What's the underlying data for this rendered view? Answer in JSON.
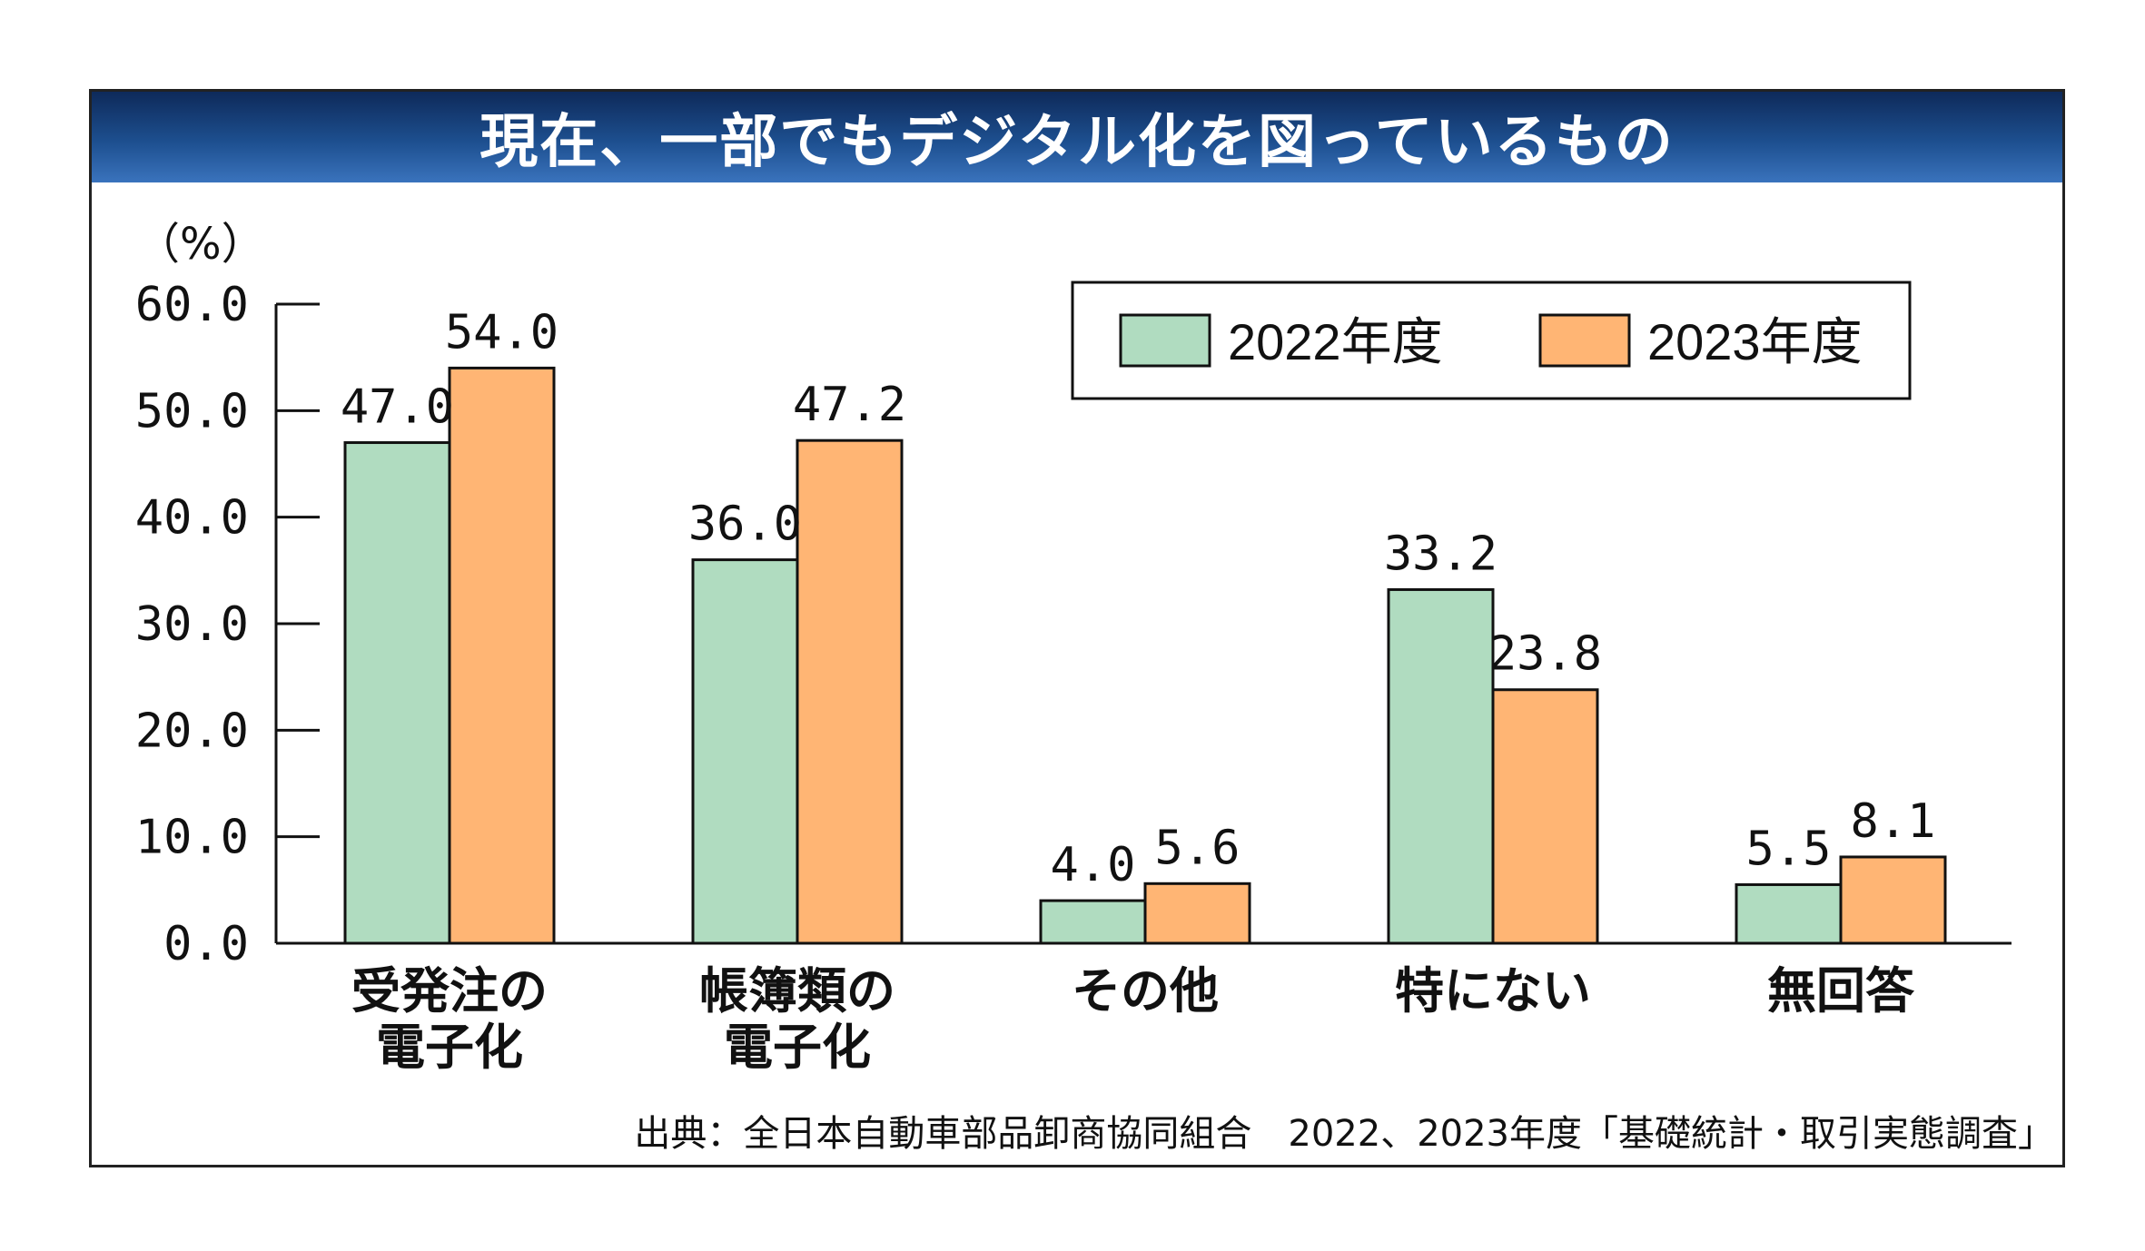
{
  "header": {
    "title": "現在、一部でもデジタル化を図っているもの"
  },
  "source_note": "出典：全日本自動車部品卸商協同組合　2022、2023年度「基礎統計・取引実態調査」",
  "colors": {
    "series_2022": "#b0dcc0",
    "series_2023": "#ffb574",
    "title_band_top": "#0e2a5a",
    "title_band_bottom": "#3a73bd"
  },
  "chart_data": {
    "type": "bar",
    "title": "現在、一部でもデジタル化を図っているもの",
    "xlabel": "",
    "ylabel": "（%）",
    "ylim": [
      0,
      60
    ],
    "yticks": [
      0,
      10,
      20,
      30,
      40,
      50,
      60
    ],
    "ytick_labels": [
      "0.0",
      "10.0",
      "20.0",
      "30.0",
      "40.0",
      "50.0",
      "60.0"
    ],
    "grid": false,
    "legend_position": "top-right",
    "categories": [
      [
        "受発注の",
        "電子化"
      ],
      [
        "帳簿類の",
        "電子化"
      ],
      [
        "その他"
      ],
      [
        "特にない"
      ],
      [
        "無回答"
      ]
    ],
    "series": [
      {
        "name": "2022年度",
        "color": "#b0dcc0",
        "values": [
          47.0,
          36.0,
          4.0,
          33.2,
          5.5
        ],
        "labels": [
          "47.0",
          "36.0",
          "4.0",
          "33.2",
          "5.5"
        ]
      },
      {
        "name": "2023年度",
        "color": "#ffb574",
        "values": [
          54.0,
          47.2,
          5.6,
          23.8,
          8.1
        ],
        "labels": [
          "54.0",
          "47.2",
          "5.6",
          "23.8",
          "8.1"
        ]
      }
    ]
  }
}
